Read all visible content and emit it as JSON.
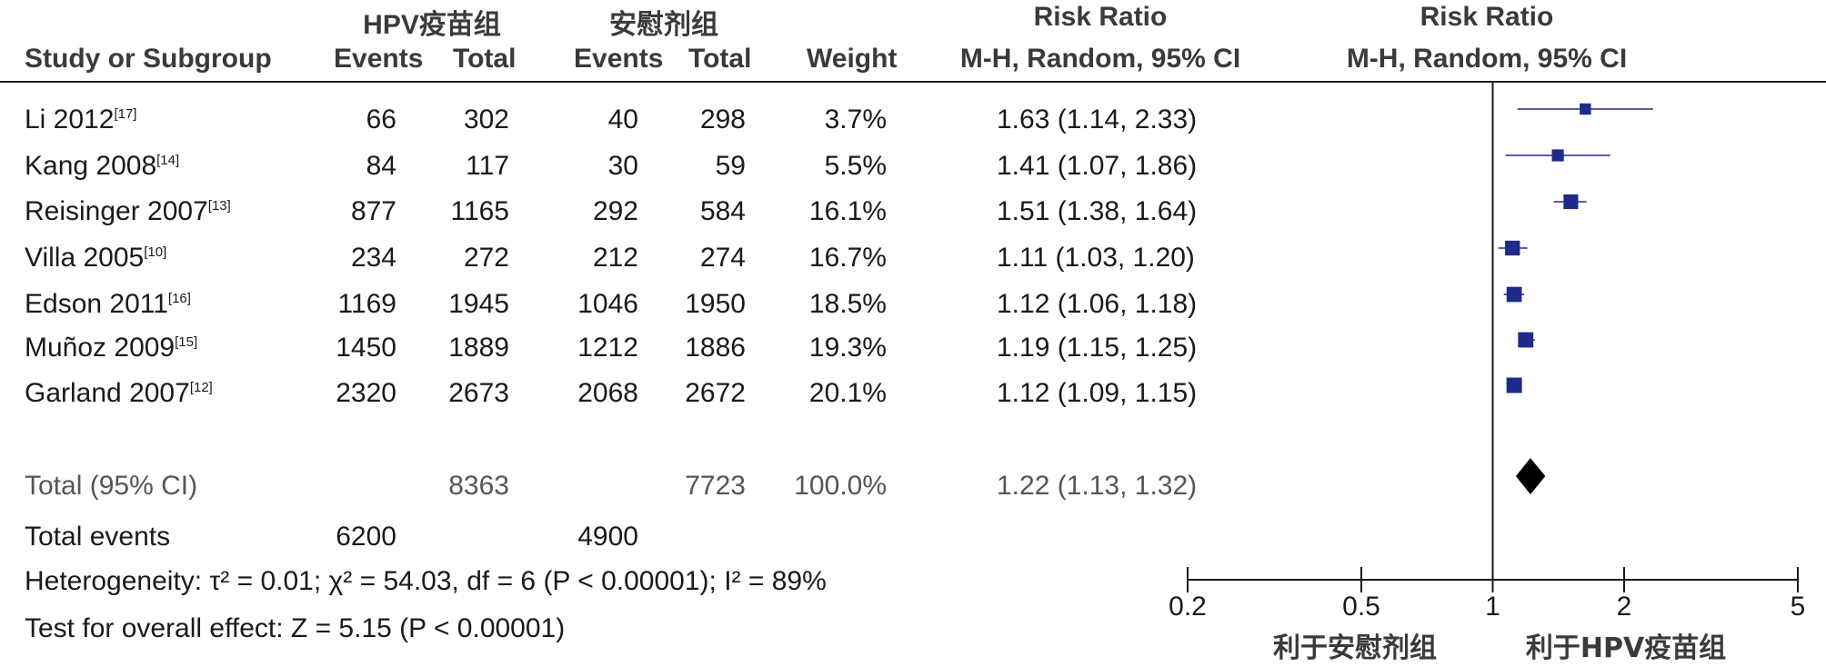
{
  "header": {
    "group1": "HPV疫苗组",
    "group2": "安慰剂组",
    "rr_top_left": "Risk Ratio",
    "rr_top_right": "Risk Ratio",
    "study": "Study or Subgroup",
    "events": "Events",
    "total": "Total",
    "weight": "Weight",
    "method_left": "M-H, Random, 95% CI",
    "method_right": "M-H, Random, 95% CI"
  },
  "rows": [
    {
      "study": "Li 2012",
      "ref": "[17]",
      "e1": "66",
      "t1": "302",
      "e2": "40",
      "t2": "298",
      "weight": "3.7%",
      "ci": "1.63 (1.14, 2.33)"
    },
    {
      "study": "Kang 2008",
      "ref": "[14]",
      "e1": "84",
      "t1": "117",
      "e2": "30",
      "t2": "59",
      "weight": "5.5%",
      "ci": "1.41 (1.07, 1.86)"
    },
    {
      "study": "Reisinger 2007",
      "ref": "[13]",
      "e1": "877",
      "t1": "1165",
      "e2": "292",
      "t2": "584",
      "weight": "16.1%",
      "ci": "1.51 (1.38, 1.64)"
    },
    {
      "study": "Villa 2005",
      "ref": "[10]",
      "e1": "234",
      "t1": "272",
      "e2": "212",
      "t2": "274",
      "weight": "16.7%",
      "ci": "1.11 (1.03, 1.20)"
    },
    {
      "study": "Edson 2011",
      "ref": "[16]",
      "e1": "1169",
      "t1": "1945",
      "e2": "1046",
      "t2": "1950",
      "weight": "18.5%",
      "ci": "1.12 (1.06, 1.18)"
    },
    {
      "study": "Muñoz 2009",
      "ref": "[15]",
      "e1": "1450",
      "t1": "1889",
      "e2": "1212",
      "t2": "1886",
      "weight": "19.3%",
      "ci": "1.19 (1.15, 1.25)"
    },
    {
      "study": "Garland 2007",
      "ref": "[12]",
      "e1": "2320",
      "t1": "2673",
      "e2": "2068",
      "t2": "2672",
      "weight": "20.1%",
      "ci": "1.12 (1.09, 1.15)"
    }
  ],
  "total": {
    "label": "Total (95% CI)",
    "t1": "8363",
    "t2": "7723",
    "weight": "100.0%",
    "ci": "1.22 (1.13, 1.32)"
  },
  "events": {
    "label": "Total events",
    "e1": "6200",
    "e2": "4900"
  },
  "heterogeneity": "Heterogeneity: τ² = 0.01; χ² = 54.03, df = 6 (P < 0.00001); I² = 89%",
  "overall": "Test for overall effect: Z = 5.15 (P < 0.00001)",
  "axis": {
    "ticks": [
      "0.2",
      "0.5",
      "1",
      "2",
      "5"
    ],
    "favours_left": "利于安慰剂组",
    "favours_right": "利于HPV疫苗组"
  },
  "colors": {
    "marker": "#1f2a8a",
    "line": "#1a1a1a"
  },
  "chart_data": {
    "type": "forest",
    "scale": "log",
    "xlim": [
      0.2,
      5
    ],
    "null_line": 1,
    "series": [
      {
        "name": "Li 2012",
        "rr": 1.63,
        "lo": 1.14,
        "hi": 2.33,
        "weight": 3.7
      },
      {
        "name": "Kang 2008",
        "rr": 1.41,
        "lo": 1.07,
        "hi": 1.86,
        "weight": 5.5
      },
      {
        "name": "Reisinger 2007",
        "rr": 1.51,
        "lo": 1.38,
        "hi": 1.64,
        "weight": 16.1
      },
      {
        "name": "Villa 2005",
        "rr": 1.11,
        "lo": 1.03,
        "hi": 1.2,
        "weight": 16.7
      },
      {
        "name": "Edson 2011",
        "rr": 1.12,
        "lo": 1.06,
        "hi": 1.18,
        "weight": 18.5
      },
      {
        "name": "Muñoz 2009",
        "rr": 1.19,
        "lo": 1.15,
        "hi": 1.25,
        "weight": 19.3
      },
      {
        "name": "Garland 2007",
        "rr": 1.12,
        "lo": 1.09,
        "hi": 1.15,
        "weight": 20.1
      }
    ],
    "pooled": {
      "rr": 1.22,
      "lo": 1.13,
      "hi": 1.32
    }
  }
}
